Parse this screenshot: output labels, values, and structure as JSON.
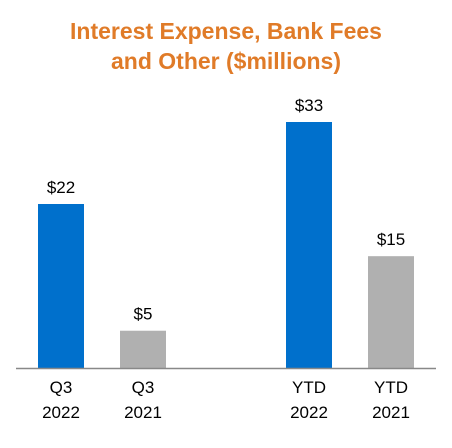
{
  "chart_data": {
    "type": "bar",
    "title_lines": [
      "Interest Expense, Bank Fees",
      "and Other ($millions)"
    ],
    "title": "Interest Expense, Bank Fees and Other ($millions)",
    "categories": [
      {
        "line1": "Q3",
        "line2": "2022"
      },
      {
        "line1": "Q3",
        "line2": "2021"
      },
      {
        "line1": "YTD",
        "line2": "2022"
      },
      {
        "line1": "YTD",
        "line2": "2021"
      }
    ],
    "values": [
      22,
      5,
      33,
      15
    ],
    "value_labels": [
      "$22",
      "$5",
      "$33",
      "$15"
    ],
    "bar_colors": [
      "#0070cc",
      "#b0b0b0",
      "#0070cc",
      "#b0b0b0"
    ],
    "title_color": "#e07b28",
    "axis_color": "#888888",
    "xlabel": "",
    "ylabel": "",
    "ylim": [
      0,
      33
    ],
    "grid": false,
    "legend": "none"
  }
}
